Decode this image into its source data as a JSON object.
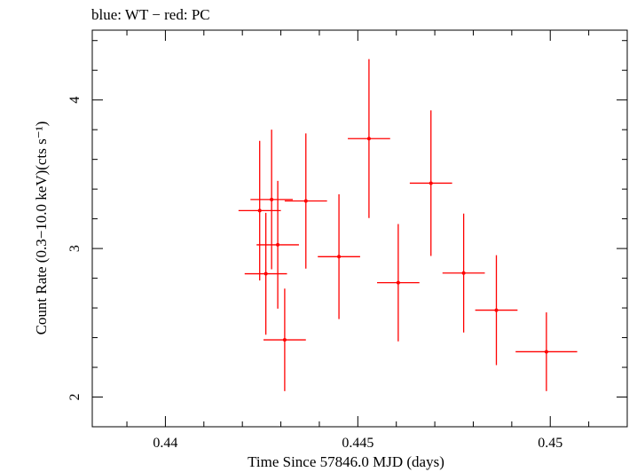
{
  "chart_data": {
    "type": "scatter",
    "title": "blue: WT − red: PC",
    "xlabel": "Time Since 57846.0 MJD (days)",
    "ylabel": "Count Rate (0.3−10.0 keV)(cts s⁻¹)",
    "xlim": [
      0.4381,
      0.452
    ],
    "ylim": [
      1.8,
      4.47
    ],
    "x_ticks": [
      0.44,
      0.445,
      0.45
    ],
    "x_tick_labels": [
      "0.44",
      "0.445",
      "0.45"
    ],
    "y_ticks": [
      2,
      3,
      4
    ],
    "y_tick_labels": [
      "2",
      "3",
      "4"
    ],
    "grid": false,
    "series": [
      {
        "color": "#ff0000",
        "points": [
          {
            "x": 0.44245,
            "xerr": 0.00055,
            "y": 3.255,
            "yerr": 0.47
          },
          {
            "x": 0.44261,
            "xerr": 0.00055,
            "y": 2.83,
            "yerr": 0.41
          },
          {
            "x": 0.44276,
            "xerr": 0.00055,
            "y": 3.33,
            "yerr": 0.47
          },
          {
            "x": 0.44292,
            "xerr": 0.00055,
            "y": 3.025,
            "yerr": 0.43
          },
          {
            "x": 0.4431,
            "xerr": 0.00055,
            "y": 2.385,
            "yerr": 0.345
          },
          {
            "x": 0.44365,
            "xerr": 0.00055,
            "y": 3.32,
            "yerr": 0.455
          },
          {
            "x": 0.44451,
            "xerr": 0.00055,
            "y": 2.945,
            "yerr": 0.42
          },
          {
            "x": 0.44529,
            "xerr": 0.00055,
            "y": 3.74,
            "yerr": 0.535
          },
          {
            "x": 0.44605,
            "xerr": 0.00055,
            "y": 2.77,
            "yerr": 0.395
          },
          {
            "x": 0.4469,
            "xerr": 0.00055,
            "y": 3.44,
            "yerr": 0.49
          },
          {
            "x": 0.44775,
            "xerr": 0.00055,
            "y": 2.835,
            "yerr": 0.4
          },
          {
            "x": 0.4486,
            "xerr": 0.00055,
            "y": 2.585,
            "yerr": 0.37
          },
          {
            "x": 0.4499,
            "xerr": 0.0008,
            "y": 2.305,
            "yerr": 0.265
          }
        ]
      }
    ]
  }
}
